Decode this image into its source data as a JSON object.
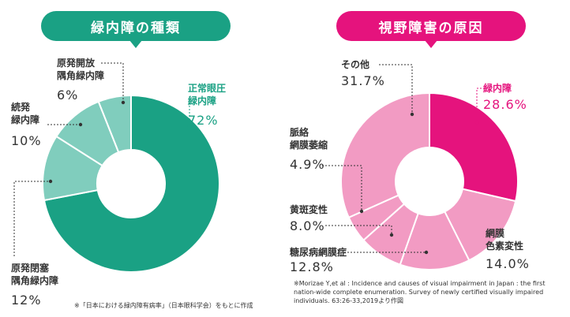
{
  "colors": {
    "teal_main": "#1aa184",
    "teal_light": "#80cdbd",
    "pink_main": "#e5137d",
    "pink_light": "#f29bc3"
  },
  "chart_data": [
    {
      "type": "pie",
      "title": "緑内障の種類",
      "slices": [
        {
          "label": "正常眼圧\n緑内障",
          "value": 72,
          "value_label": "72%",
          "color": "#1aa184"
        },
        {
          "label": "原発閉塞\n隅角緑内障",
          "value": 12,
          "value_label": "12%",
          "color": "#80cdbd"
        },
        {
          "label": "続発\n緑内障",
          "value": 10,
          "value_label": "10%",
          "color": "#80cdbd"
        },
        {
          "label": "原発開放\n隅角緑内障",
          "value": 6,
          "value_label": "6%",
          "color": "#80cdbd"
        }
      ],
      "source": "※「日本における緑内障有病率」（日本眼科学会）をもとに作成"
    },
    {
      "type": "pie",
      "title": "視野障害の原因",
      "slices": [
        {
          "label": "緑内障",
          "value": 28.6,
          "value_label": "28.6%",
          "color": "#e5137d"
        },
        {
          "label": "網膜\n色素変性",
          "value": 14.0,
          "value_label": "14.0%",
          "color": "#f29bc3"
        },
        {
          "label": "糖尿病網膜症",
          "value": 12.8,
          "value_label": "12.8%",
          "color": "#f29bc3"
        },
        {
          "label": "黄斑変性",
          "value": 8.0,
          "value_label": "8.0%",
          "color": "#f29bc3"
        },
        {
          "label": "脈絡\n網膜萎縮",
          "value": 4.9,
          "value_label": "4.9%",
          "color": "#f29bc3"
        },
        {
          "label": "その他",
          "value": 31.7,
          "value_label": "31.7%",
          "color": "#f29bc3"
        }
      ],
      "source": "※Morizae Y,et al : Incidence and causes of visual impairment in Japan : the first nation-wide complete enumeration. Survey of newly certified visually impaired individuals. 63:26-33,2019より作図"
    }
  ]
}
